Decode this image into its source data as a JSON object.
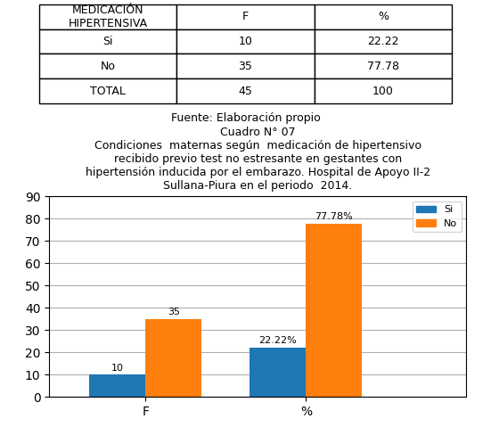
{
  "chart_data": [
    {
      "type": "table",
      "headers": [
        "MEDICACIÓN\nHIPERTENSIVA",
        "F",
        "%"
      ],
      "rows": [
        [
          "Si",
          "10",
          "22.22"
        ],
        [
          "No",
          "35",
          "77.78"
        ],
        [
          "TOTAL",
          "45",
          "100"
        ]
      ],
      "source": "Fuente: Elaboración propio"
    },
    {
      "type": "bar",
      "title": "Cuadro N° 07\nCondiciones  maternas según  medicación de hipertensivo\nrecibido previo test no estresante en gestantes con\nhipertensión inducida por el embarazo. Hospital de Apoyo II-2\nSullana-Piura en el periodo  2014.",
      "categories": [
        "F",
        "%"
      ],
      "series": [
        {
          "name": "Si",
          "values": [
            10,
            22.22
          ],
          "value_labels": [
            "10",
            "22.22%"
          ]
        },
        {
          "name": "No",
          "values": [
            35,
            77.78
          ],
          "value_labels": [
            "35",
            "77.78%"
          ]
        }
      ],
      "ylim": [
        0,
        90
      ],
      "yticks": [
        0,
        10,
        20,
        30,
        40,
        50,
        60,
        70,
        80,
        90
      ],
      "grid": true,
      "legend": "upper right",
      "data_labels": true
    }
  ]
}
